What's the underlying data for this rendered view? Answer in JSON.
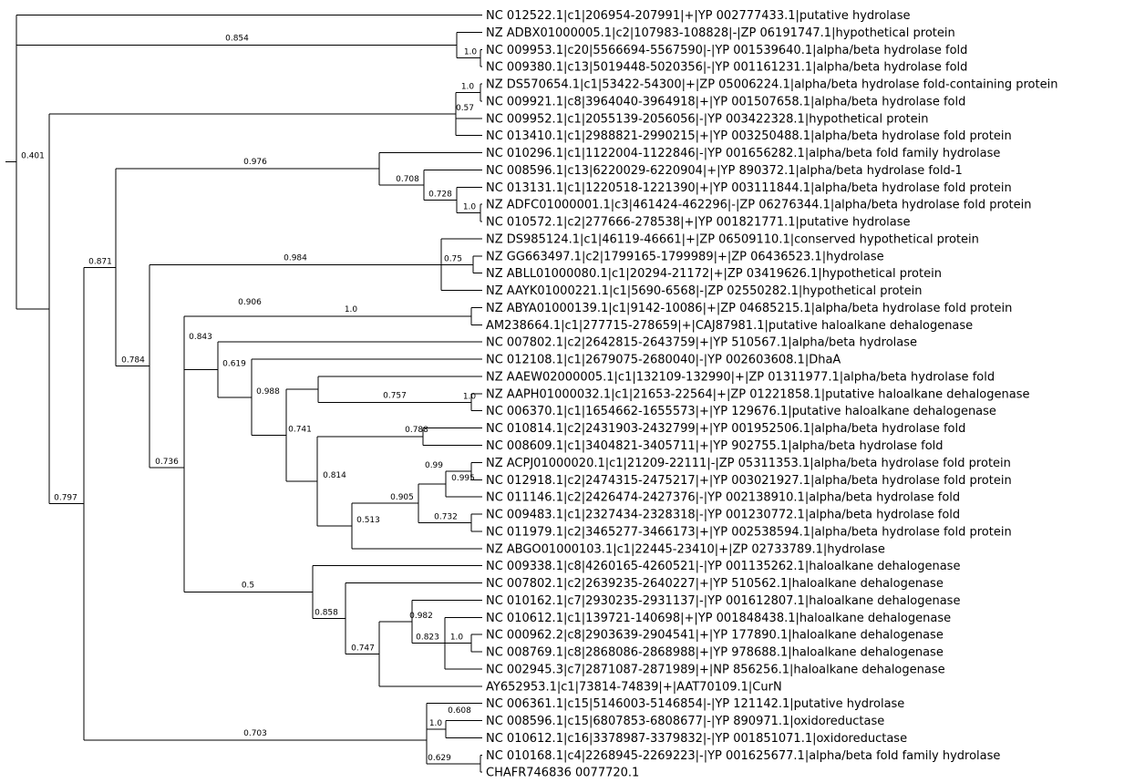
{
  "leaves": [
    "NC 012522.1|c1|206954-207991|+|YP 002777433.1|putative hydrolase",
    "NZ ADBX01000005.1|c2|107983-108828|-|ZP 06191747.1|hypothetical protein",
    "NC 009953.1|c20|5566694-5567590|-|YP 001539640.1|alpha/beta hydrolase fold",
    "NC 009380.1|c13|5019448-5020356|-|YP 001161231.1|alpha/beta hydrolase fold",
    "NZ DS570654.1|c1|53422-54300|+|ZP 05006224.1|alpha/beta hydrolase fold-containing protein",
    "NC 009921.1|c8|3964040-3964918|+|YP 001507658.1|alpha/beta hydrolase fold",
    "NC 009952.1|c1|2055139-2056056|-|YP 003422328.1|hypothetical protein",
    "NC 013410.1|c1|2988821-2990215|+|YP 003250488.1|alpha/beta hydrolase fold protein",
    "NC 010296.1|c1|1122004-1122846|-|YP 001656282.1|alpha/beta fold family hydrolase",
    "NC 008596.1|c13|6220029-6220904|+|YP 890372.1|alpha/beta hydrolase fold-1",
    "NC 013131.1|c1|1220518-1221390|+|YP 003111844.1|alpha/beta hydrolase fold protein",
    "NZ ADFC01000001.1|c3|461424-462296|-|ZP 06276344.1|alpha/beta hydrolase fold protein",
    "NC 010572.1|c2|277666-278538|+|YP 001821771.1|putative hydrolase",
    "NZ DS985124.1|c1|46119-46661|+|ZP 06509110.1|conserved hypothetical protein",
    "NZ GG663497.1|c2|1799165-1799989|+|ZP 06436523.1|hydrolase",
    "NZ ABLL01000080.1|c1|20294-21172|+|ZP 03419626.1|hypothetical protein",
    "NZ AAYK01000221.1|c1|5690-6568|-|ZP 02550282.1|hypothetical protein",
    "NZ ABYA01000139.1|c1|9142-10086|+|ZP 04685215.1|alpha/beta hydrolase fold protein",
    "AM238664.1|c1|277715-278659|+|CAJ87981.1|putative haloalkane dehalogenase",
    "NC 007802.1|c2|2642815-2643759|+|YP 510567.1|alpha/beta hydrolase",
    "NC 012108.1|c1|2679075-2680040|-|YP 002603608.1|DhaA",
    "NZ AAEW02000005.1|c1|132109-132990|+|ZP 01311977.1|alpha/beta hydrolase fold",
    "NZ AAPH01000032.1|c1|21653-22564|+|ZP 01221858.1|putative haloalkane dehalogenase",
    "NC 006370.1|c1|1654662-1655573|+|YP 129676.1|putative haloalkane dehalogenase",
    "NC 010814.1|c2|2431903-2432799|+|YP 001952506.1|alpha/beta hydrolase fold",
    "NC 008609.1|c1|3404821-3405711|+|YP 902755.1|alpha/beta hydrolase fold",
    "NZ ACPJ01000020.1|c1|21209-22111|-|ZP 05311353.1|alpha/beta hydrolase fold protein",
    "NC 012918.1|c2|2474315-2475217|+|YP 003021927.1|alpha/beta hydrolase fold protein",
    "NC 011146.1|c2|2426474-2427376|-|YP 002138910.1|alpha/beta hydrolase fold",
    "NC 009483.1|c1|2327434-2328318|-|YP 001230772.1|alpha/beta hydrolase fold",
    "NC 011979.1|c2|3465277-3466173|+|YP 002538594.1|alpha/beta hydrolase fold protein",
    "NZ ABGO01000103.1|c1|22445-23410|+|ZP 02733789.1|hydrolase",
    "NC 009338.1|c8|4260165-4260521|-|YP 001135262.1|haloalkane dehalogenase",
    "NC 007802.1|c2|2639235-2640227|+|YP 510562.1|haloalkane dehalogenase",
    "NC 010162.1|c7|2930235-2931137|-|YP 001612807.1|haloalkane dehalogenase",
    "NC 010612.1|c1|139721-140698|+|YP 001848438.1|haloalkane dehalogenase",
    "NC 000962.2|c8|2903639-2904541|+|YP 177890.1|haloalkane dehalogenase",
    "NC 008769.1|c8|2868086-2868988|+|YP 978688.1|haloalkane dehalogenase",
    "NC 002945.3|c7|2871087-2871989|+|NP 856256.1|haloalkane dehalogenase",
    "AY652953.1|c1|73814-74839|+|AAT70109.1|CurN",
    "NC 006361.1|c15|5146003-5146854|-|YP 121142.1|putative hydrolase",
    "NC 008596.1|c15|6807853-6808677|-|YP 890971.1|oxidoreductase",
    "NC 010612.1|c16|3378987-3379832|-|YP 001851071.1|oxidoreductase",
    "NC 010168.1|c4|2268945-2269223|-|YP 001625677.1|alpha/beta fold family hydrolase",
    "CHAFR746836 0077720.1"
  ],
  "support": [
    "0.854",
    "1.0",
    "0.906",
    "1.0",
    "0.57",
    "0.976",
    "0.708",
    "0.728",
    "1.0",
    "0.871",
    "0.401",
    "0.984",
    "0.75",
    "1.0",
    "0.843",
    "0.619",
    "0.988",
    "0.757",
    "1.0",
    "0.741",
    "0.788",
    "0.814",
    "0.99",
    "0.995",
    "0.905",
    "0.732",
    "0.513",
    "0.784",
    "0.736",
    "0.5",
    "0.982",
    "0.823",
    "1.0",
    "0.858",
    "0.747",
    "0.797",
    "1.0",
    "0.608",
    "0.703",
    "0.629"
  ]
}
